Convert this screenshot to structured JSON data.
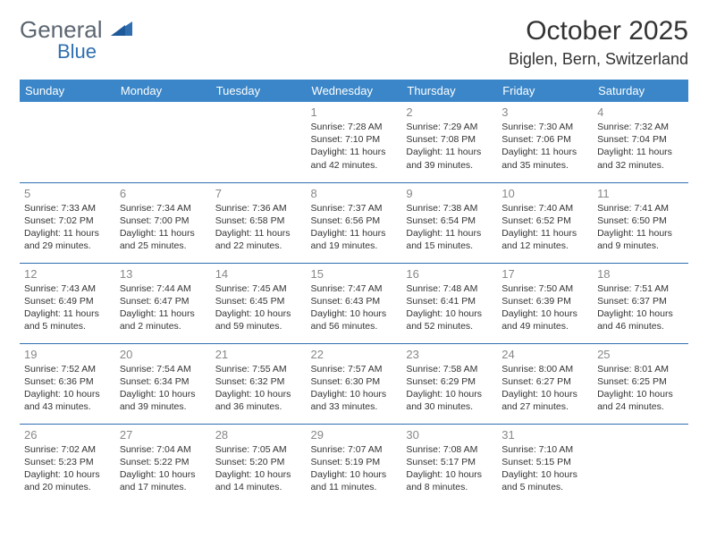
{
  "brand": {
    "part1": "General",
    "part2": "Blue"
  },
  "title": "October 2025",
  "subtitle": "Biglen, Bern, Switzerland",
  "colors": {
    "header_bg": "#3a86c8",
    "border": "#2f6fb0",
    "daynum": "#888888",
    "text": "#333333"
  },
  "weekdays": [
    "Sunday",
    "Monday",
    "Tuesday",
    "Wednesday",
    "Thursday",
    "Friday",
    "Saturday"
  ],
  "weeks": [
    [
      null,
      null,
      null,
      {
        "n": "1",
        "sr": "7:28 AM",
        "ss": "7:10 PM",
        "dl": "11 hours and 42 minutes."
      },
      {
        "n": "2",
        "sr": "7:29 AM",
        "ss": "7:08 PM",
        "dl": "11 hours and 39 minutes."
      },
      {
        "n": "3",
        "sr": "7:30 AM",
        "ss": "7:06 PM",
        "dl": "11 hours and 35 minutes."
      },
      {
        "n": "4",
        "sr": "7:32 AM",
        "ss": "7:04 PM",
        "dl": "11 hours and 32 minutes."
      }
    ],
    [
      {
        "n": "5",
        "sr": "7:33 AM",
        "ss": "7:02 PM",
        "dl": "11 hours and 29 minutes."
      },
      {
        "n": "6",
        "sr": "7:34 AM",
        "ss": "7:00 PM",
        "dl": "11 hours and 25 minutes."
      },
      {
        "n": "7",
        "sr": "7:36 AM",
        "ss": "6:58 PM",
        "dl": "11 hours and 22 minutes."
      },
      {
        "n": "8",
        "sr": "7:37 AM",
        "ss": "6:56 PM",
        "dl": "11 hours and 19 minutes."
      },
      {
        "n": "9",
        "sr": "7:38 AM",
        "ss": "6:54 PM",
        "dl": "11 hours and 15 minutes."
      },
      {
        "n": "10",
        "sr": "7:40 AM",
        "ss": "6:52 PM",
        "dl": "11 hours and 12 minutes."
      },
      {
        "n": "11",
        "sr": "7:41 AM",
        "ss": "6:50 PM",
        "dl": "11 hours and 9 minutes."
      }
    ],
    [
      {
        "n": "12",
        "sr": "7:43 AM",
        "ss": "6:49 PM",
        "dl": "11 hours and 5 minutes."
      },
      {
        "n": "13",
        "sr": "7:44 AM",
        "ss": "6:47 PM",
        "dl": "11 hours and 2 minutes."
      },
      {
        "n": "14",
        "sr": "7:45 AM",
        "ss": "6:45 PM",
        "dl": "10 hours and 59 minutes."
      },
      {
        "n": "15",
        "sr": "7:47 AM",
        "ss": "6:43 PM",
        "dl": "10 hours and 56 minutes."
      },
      {
        "n": "16",
        "sr": "7:48 AM",
        "ss": "6:41 PM",
        "dl": "10 hours and 52 minutes."
      },
      {
        "n": "17",
        "sr": "7:50 AM",
        "ss": "6:39 PM",
        "dl": "10 hours and 49 minutes."
      },
      {
        "n": "18",
        "sr": "7:51 AM",
        "ss": "6:37 PM",
        "dl": "10 hours and 46 minutes."
      }
    ],
    [
      {
        "n": "19",
        "sr": "7:52 AM",
        "ss": "6:36 PM",
        "dl": "10 hours and 43 minutes."
      },
      {
        "n": "20",
        "sr": "7:54 AM",
        "ss": "6:34 PM",
        "dl": "10 hours and 39 minutes."
      },
      {
        "n": "21",
        "sr": "7:55 AM",
        "ss": "6:32 PM",
        "dl": "10 hours and 36 minutes."
      },
      {
        "n": "22",
        "sr": "7:57 AM",
        "ss": "6:30 PM",
        "dl": "10 hours and 33 minutes."
      },
      {
        "n": "23",
        "sr": "7:58 AM",
        "ss": "6:29 PM",
        "dl": "10 hours and 30 minutes."
      },
      {
        "n": "24",
        "sr": "8:00 AM",
        "ss": "6:27 PM",
        "dl": "10 hours and 27 minutes."
      },
      {
        "n": "25",
        "sr": "8:01 AM",
        "ss": "6:25 PM",
        "dl": "10 hours and 24 minutes."
      }
    ],
    [
      {
        "n": "26",
        "sr": "7:02 AM",
        "ss": "5:23 PM",
        "dl": "10 hours and 20 minutes."
      },
      {
        "n": "27",
        "sr": "7:04 AM",
        "ss": "5:22 PM",
        "dl": "10 hours and 17 minutes."
      },
      {
        "n": "28",
        "sr": "7:05 AM",
        "ss": "5:20 PM",
        "dl": "10 hours and 14 minutes."
      },
      {
        "n": "29",
        "sr": "7:07 AM",
        "ss": "5:19 PM",
        "dl": "10 hours and 11 minutes."
      },
      {
        "n": "30",
        "sr": "7:08 AM",
        "ss": "5:17 PM",
        "dl": "10 hours and 8 minutes."
      },
      {
        "n": "31",
        "sr": "7:10 AM",
        "ss": "5:15 PM",
        "dl": "10 hours and 5 minutes."
      },
      null
    ]
  ],
  "labels": {
    "sunrise": "Sunrise: ",
    "sunset": "Sunset: ",
    "daylight": "Daylight: "
  }
}
